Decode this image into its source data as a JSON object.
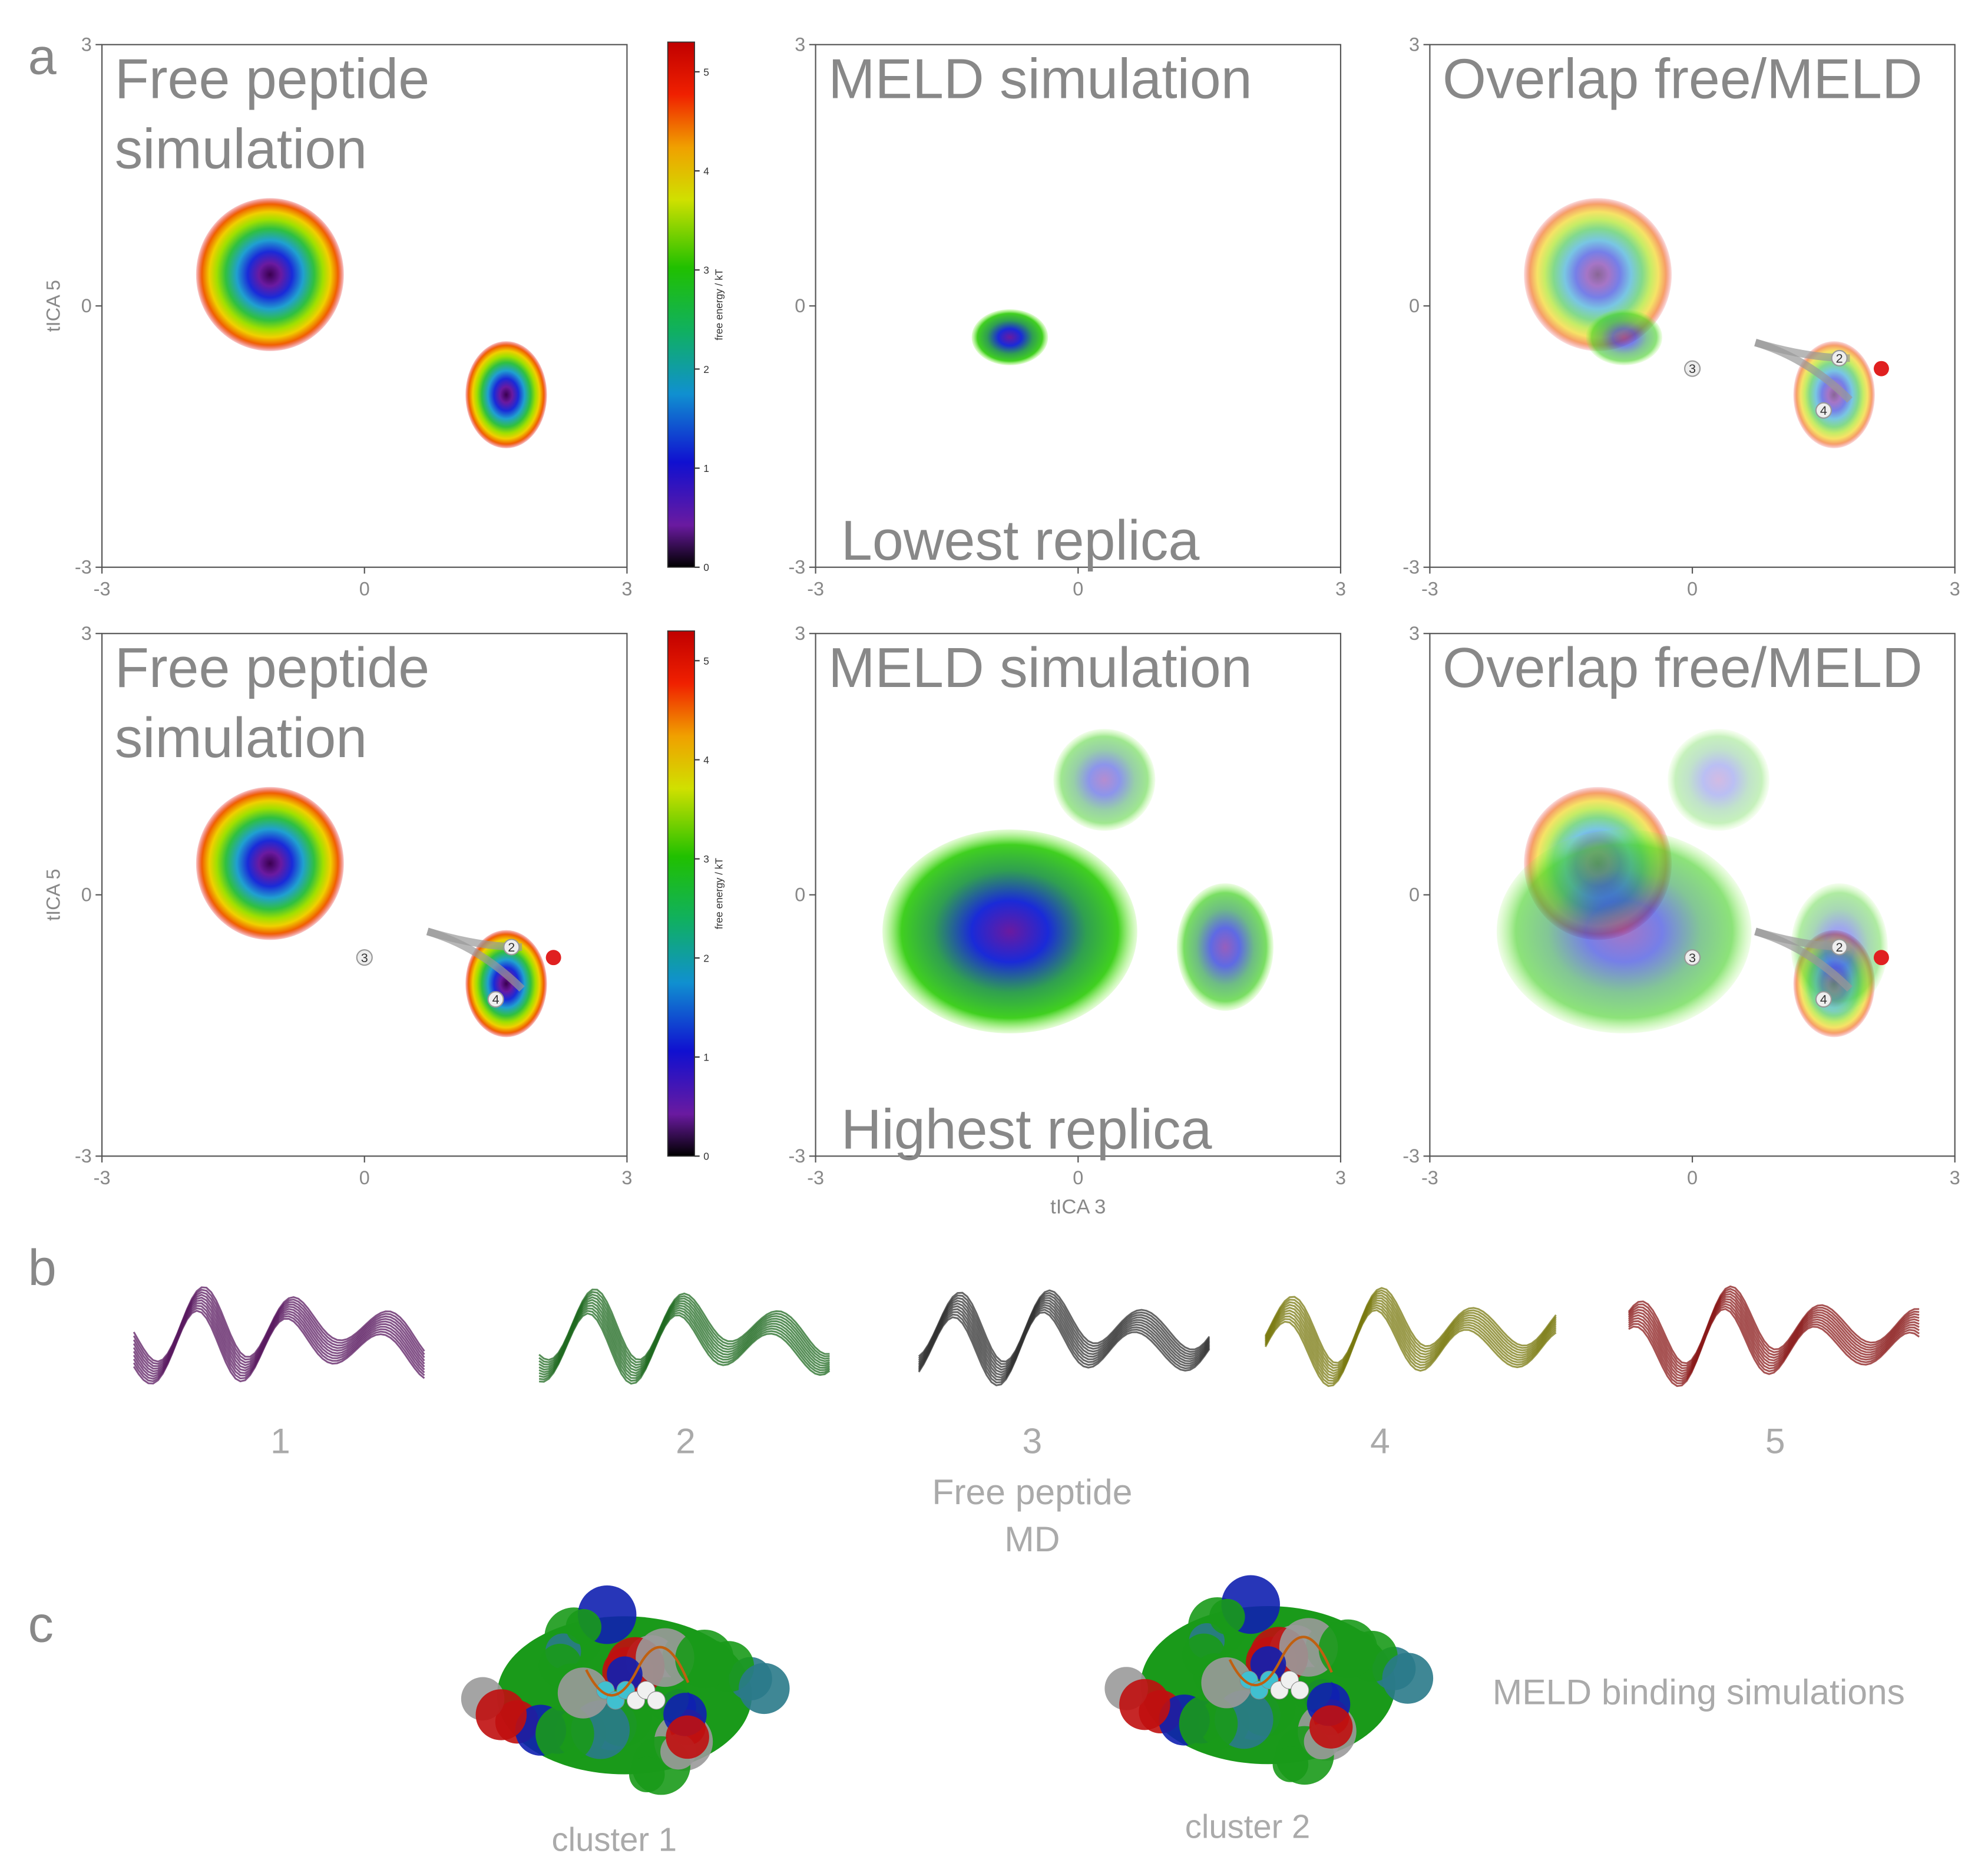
{
  "panel_labels": [
    "a",
    "b",
    "c"
  ],
  "panel_a": {
    "xlim": [
      -3,
      3
    ],
    "ylim": [
      -3,
      3
    ],
    "xticks": [
      -3,
      0,
      3
    ],
    "yticks": [
      -3,
      0,
      3
    ],
    "ylabel": "tICA 5",
    "xlabel": "tICA 3",
    "colorbar": {
      "label": "free energy / kT",
      "lim": [
        0,
        5.3
      ],
      "ticks": [
        0,
        1,
        2,
        3,
        4,
        5
      ]
    },
    "plots": [
      {
        "title": [
          "Free peptide",
          "simulation"
        ]
      },
      {
        "title": [
          "MELD simulation"
        ],
        "subtitle": "Lowest replica"
      },
      {
        "title": [
          "Overlap free/MELD"
        ],
        "markers": [
          "3",
          "2",
          "4"
        ]
      },
      {
        "title": [
          "Free peptide",
          "simulation"
        ],
        "markers": [
          "3",
          "2",
          "4"
        ]
      },
      {
        "title": [
          "MELD simulation"
        ],
        "subtitle": "Highest replica"
      },
      {
        "title": [
          "Overlap free/MELD"
        ],
        "markers": [
          "3",
          "2",
          "4"
        ]
      }
    ]
  },
  "panel_b": {
    "structures": [
      "1",
      "2",
      "3",
      "4",
      "5"
    ],
    "caption": [
      "Free peptide",
      "MD"
    ]
  },
  "panel_c": {
    "clusters": [
      "cluster 1",
      "cluster 2"
    ],
    "caption": "MELD binding simulations"
  }
}
